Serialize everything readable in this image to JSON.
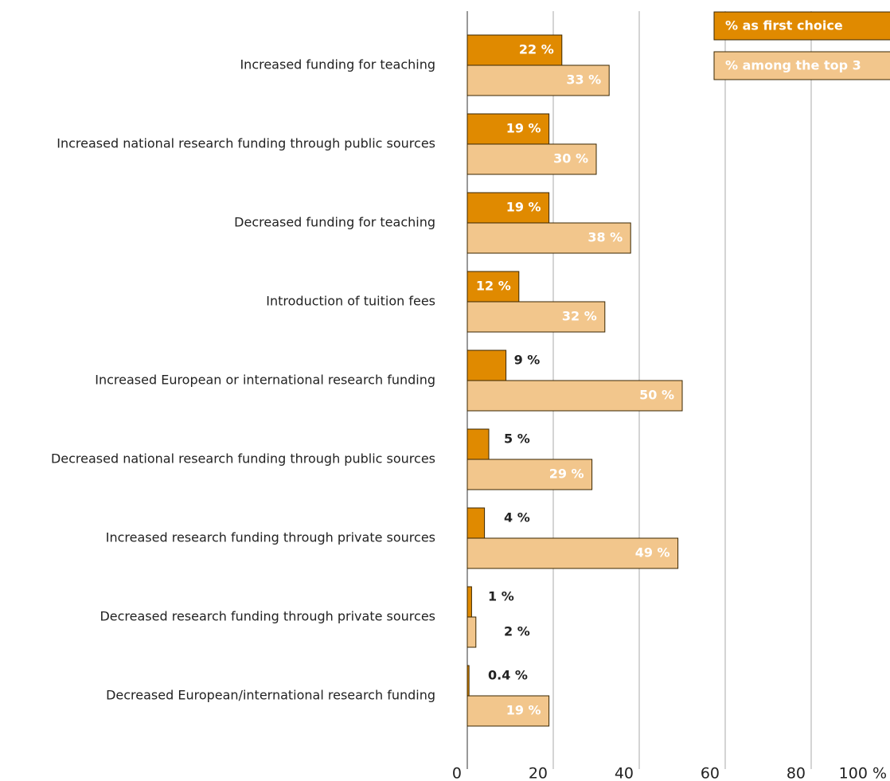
{
  "chart_data": {
    "type": "hbar",
    "categories": [
      "Increased funding for teaching",
      "Increased national research funding through public sources",
      "Decreased funding for teaching",
      "Introduction of tuition fees",
      "Increased European or international research funding",
      "Decreased national research funding through public sources",
      "Increased research funding through private sources",
      "Decreased research funding through private sources",
      "Decreased European/international research funding"
    ],
    "series": [
      {
        "name": "% as first choice",
        "color": "#e08a00",
        "values": [
          22,
          19,
          19,
          12,
          9,
          5,
          4,
          1,
          0.4
        ],
        "value_labels": [
          "22 %",
          "19 %",
          "19 %",
          "12 %",
          "9 %",
          "5 %",
          "4 %",
          "1 %",
          "0.4 %"
        ]
      },
      {
        "name": "% among the top 3",
        "color": "#f2c68c",
        "values": [
          33,
          30,
          38,
          32,
          50,
          29,
          49,
          2,
          19
        ],
        "value_labels": [
          "33 %",
          "30 %",
          "38 %",
          "32 %",
          "50 %",
          "29 %",
          "49 %",
          "2 %",
          "19 %"
        ]
      }
    ],
    "xlim": [
      0,
      100
    ],
    "xticks": [
      0,
      20,
      40,
      60,
      80,
      {
        "value": 100,
        "label": "100 %"
      }
    ],
    "grid": true,
    "legend": "top-right"
  }
}
